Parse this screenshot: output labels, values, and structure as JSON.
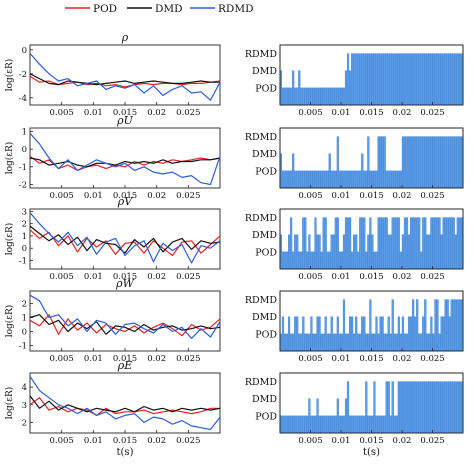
{
  "legend": {
    "entries": [
      {
        "label": "POD",
        "color": "#e8231f"
      },
      {
        "label": "DMD",
        "color": "#111111"
      },
      {
        "label": "RDMD",
        "color": "#2b5fd9"
      }
    ]
  },
  "colors": {
    "pod": "#e8231f",
    "dmd": "#111111",
    "rdmd": "#2b5fd9",
    "bar_fill": "#5a9ee8",
    "bar_edge": "#2e6fc7"
  },
  "chart_data": [
    {
      "type": "line",
      "panel": "left-1",
      "title": "ρ",
      "xlabel": "",
      "ylabel": "log(εR)",
      "xlim": [
        0,
        0.03
      ],
      "ylim": [
        -4.6,
        0.4
      ],
      "xticks": [
        0.005,
        0.01,
        0.015,
        0.02,
        0.025
      ],
      "xtick_labels": [
        "0.005",
        "0.01",
        "0.015",
        "0.02",
        "0.025"
      ],
      "yticks": [
        -4,
        -2,
        0
      ],
      "ytick_labels": [
        "-4",
        "-2",
        "0"
      ],
      "x": [
        0.0,
        0.0015,
        0.003,
        0.0045,
        0.006,
        0.0075,
        0.009,
        0.0105,
        0.012,
        0.0135,
        0.015,
        0.0165,
        0.018,
        0.0195,
        0.021,
        0.0225,
        0.024,
        0.0255,
        0.027,
        0.0285,
        0.03
      ],
      "series": [
        {
          "name": "POD",
          "values": [
            -2.2,
            -2.7,
            -2.6,
            -2.9,
            -2.8,
            -2.7,
            -2.9,
            -2.8,
            -3.0,
            -2.9,
            -3.1,
            -2.9,
            -2.8,
            -2.9,
            -2.8,
            -2.8,
            -2.9,
            -2.8,
            -2.8,
            -2.7,
            -2.6
          ]
        },
        {
          "name": "DMD",
          "values": [
            -2.0,
            -2.4,
            -2.8,
            -2.9,
            -2.6,
            -2.7,
            -2.8,
            -2.9,
            -2.8,
            -2.7,
            -2.6,
            -2.8,
            -2.7,
            -2.6,
            -2.7,
            -2.8,
            -2.8,
            -2.7,
            -2.6,
            -2.7,
            -2.7
          ]
        },
        {
          "name": "RDMD",
          "values": [
            -0.3,
            -1.2,
            -2.0,
            -2.6,
            -2.4,
            -3.0,
            -2.8,
            -2.6,
            -3.3,
            -3.0,
            -3.2,
            -2.9,
            -3.6,
            -3.0,
            -3.8,
            -3.3,
            -3.0,
            -3.6,
            -3.5,
            -4.2,
            -2.7
          ]
        }
      ]
    },
    {
      "type": "line",
      "panel": "left-2",
      "title": "ρU",
      "xlabel": "",
      "ylabel": "log(εR)",
      "xlim": [
        0,
        0.03
      ],
      "ylim": [
        -2.2,
        1.2
      ],
      "xticks": [
        0.005,
        0.01,
        0.015,
        0.02,
        0.025
      ],
      "xtick_labels": [
        "0.005",
        "0.01",
        "0.015",
        "0.02",
        "0.025"
      ],
      "yticks": [
        -2,
        -1,
        0,
        1
      ],
      "ytick_labels": [
        "-2",
        "-1",
        "0",
        "1"
      ],
      "x": [
        0.0,
        0.0015,
        0.003,
        0.0045,
        0.006,
        0.0075,
        0.009,
        0.0105,
        0.012,
        0.0135,
        0.015,
        0.0165,
        0.018,
        0.0195,
        0.021,
        0.0225,
        0.024,
        0.0255,
        0.027,
        0.0285,
        0.03
      ],
      "series": [
        {
          "name": "POD",
          "values": [
            -0.4,
            -0.8,
            -0.6,
            -1.1,
            -0.9,
            -1.2,
            -1.0,
            -0.9,
            -1.1,
            -0.9,
            -1.0,
            -0.7,
            -0.9,
            -0.7,
            -0.8,
            -0.6,
            -0.7,
            -0.6,
            -0.5,
            -0.6,
            -0.5
          ]
        },
        {
          "name": "DMD",
          "values": [
            -0.5,
            -0.6,
            -0.9,
            -0.8,
            -0.7,
            -0.9,
            -1.0,
            -0.8,
            -0.8,
            -0.9,
            -0.7,
            -0.8,
            -0.7,
            -0.8,
            -0.6,
            -0.8,
            -0.7,
            -0.7,
            -0.6,
            -0.6,
            -0.5
          ]
        },
        {
          "name": "RDMD",
          "values": [
            0.9,
            0.3,
            -0.5,
            -1.1,
            -0.6,
            -1.2,
            -0.9,
            -0.6,
            -0.8,
            -1.0,
            -0.8,
            -1.2,
            -1.0,
            -1.3,
            -1.4,
            -1.3,
            -1.6,
            -1.5,
            -1.9,
            -2.0,
            -0.4
          ]
        }
      ]
    },
    {
      "type": "line",
      "panel": "left-3",
      "title": "ρV",
      "xlabel": "",
      "ylabel": "log(εR)",
      "xlim": [
        0,
        0.03
      ],
      "ylim": [
        -1.7,
        3.2
      ],
      "xticks": [
        0.005,
        0.01,
        0.015,
        0.02,
        0.025
      ],
      "xtick_labels": [
        "0.005",
        "0.01",
        "0.015",
        "0.02",
        "0.025"
      ],
      "yticks": [
        -1,
        0,
        1,
        2,
        3
      ],
      "ytick_labels": [
        "-1",
        "0",
        "1",
        "2",
        "3"
      ],
      "x": [
        0.0,
        0.0015,
        0.003,
        0.0045,
        0.006,
        0.0075,
        0.009,
        0.0105,
        0.012,
        0.0135,
        0.015,
        0.0165,
        0.018,
        0.0195,
        0.021,
        0.0225,
        0.024,
        0.0255,
        0.027,
        0.0285,
        0.03
      ],
      "series": [
        {
          "name": "POD",
          "values": [
            1.5,
            0.8,
            1.3,
            0.2,
            1.0,
            -0.3,
            0.8,
            0.1,
            0.6,
            -0.5,
            0.4,
            0.5,
            -0.4,
            0.6,
            0.0,
            -0.6,
            0.5,
            0.6,
            -0.4,
            0.3,
            1.0
          ]
        },
        {
          "name": "DMD",
          "values": [
            1.8,
            1.2,
            0.6,
            1.1,
            0.3,
            0.9,
            -0.2,
            0.7,
            0.4,
            0.3,
            -0.4,
            0.7,
            0.1,
            0.8,
            -0.3,
            0.5,
            0.8,
            -0.1,
            0.6,
            0.4,
            0.5
          ]
        },
        {
          "name": "RDMD",
          "values": [
            2.9,
            2.0,
            1.2,
            0.5,
            1.3,
            0.2,
            0.9,
            -0.5,
            0.5,
            0.8,
            -0.6,
            0.2,
            0.6,
            -1.1,
            0.4,
            -0.2,
            0.3,
            -1.2,
            0.2,
            0.0,
            0.6
          ]
        }
      ]
    },
    {
      "type": "line",
      "panel": "left-4",
      "title": "ρW",
      "xlabel": "",
      "ylabel": "log(εR)",
      "xlim": [
        0,
        0.03
      ],
      "ylim": [
        -1.4,
        2.9
      ],
      "xticks": [
        0.005,
        0.01,
        0.015,
        0.02,
        0.025
      ],
      "xtick_labels": [
        "0.005",
        "0.01",
        "0.015",
        "0.02",
        "0.025"
      ],
      "yticks": [
        -1,
        0,
        1,
        2
      ],
      "ytick_labels": [
        "-1",
        "0",
        "1",
        "2"
      ],
      "x": [
        0.0,
        0.0015,
        0.003,
        0.0045,
        0.006,
        0.0075,
        0.009,
        0.0105,
        0.012,
        0.0135,
        0.015,
        0.0165,
        0.018,
        0.0195,
        0.021,
        0.0225,
        0.024,
        0.0255,
        0.027,
        0.0285,
        0.03
      ],
      "series": [
        {
          "name": "POD",
          "values": [
            0.8,
            0.4,
            1.2,
            -0.2,
            0.9,
            0.1,
            0.6,
            -0.1,
            0.5,
            0.2,
            0.0,
            0.4,
            -0.1,
            0.3,
            0.6,
            0.2,
            -0.3,
            0.5,
            0.1,
            0.3,
            0.9
          ]
        },
        {
          "name": "DMD",
          "values": [
            1.0,
            1.2,
            0.5,
            0.8,
            0.0,
            0.6,
            0.2,
            0.7,
            -0.2,
            0.4,
            0.3,
            0.0,
            0.5,
            0.1,
            0.3,
            0.4,
            0.1,
            0.2,
            0.4,
            0.2,
            0.3
          ]
        },
        {
          "name": "RDMD",
          "values": [
            2.6,
            2.2,
            1.0,
            1.2,
            0.4,
            0.9,
            0.0,
            0.8,
            0.6,
            -0.2,
            0.5,
            0.6,
            0.2,
            -0.1,
            0.5,
            0.0,
            0.3,
            -0.5,
            0.2,
            -0.4,
            0.7
          ]
        }
      ]
    },
    {
      "type": "line",
      "panel": "left-5",
      "title": "ρE",
      "xlabel": "t(s)",
      "ylabel": "log(εR)",
      "xlim": [
        0,
        0.03
      ],
      "ylim": [
        1.4,
        4.8
      ],
      "xticks": [
        0.005,
        0.01,
        0.015,
        0.02,
        0.025
      ],
      "xtick_labels": [
        "0.005",
        "0.01",
        "0.015",
        "0.02",
        "0.025"
      ],
      "yticks": [
        2,
        3,
        4
      ],
      "ytick_labels": [
        "2",
        "3",
        "4"
      ],
      "x": [
        0.0,
        0.0015,
        0.003,
        0.0045,
        0.006,
        0.0075,
        0.009,
        0.0105,
        0.012,
        0.0135,
        0.015,
        0.0165,
        0.018,
        0.0195,
        0.021,
        0.0225,
        0.024,
        0.0255,
        0.027,
        0.0285,
        0.03
      ],
      "series": [
        {
          "name": "POD",
          "values": [
            3.0,
            3.4,
            2.7,
            2.9,
            2.6,
            2.8,
            2.7,
            2.4,
            2.8,
            2.5,
            2.6,
            2.6,
            2.7,
            2.5,
            2.6,
            2.7,
            2.6,
            2.5,
            2.6,
            2.8,
            2.8
          ]
        },
        {
          "name": "DMD",
          "values": [
            3.5,
            2.8,
            3.2,
            2.7,
            3.0,
            2.8,
            2.6,
            2.8,
            2.7,
            2.6,
            2.8,
            2.6,
            2.9,
            2.7,
            2.8,
            2.6,
            2.8,
            2.7,
            2.8,
            2.7,
            2.8
          ]
        },
        {
          "name": "RDMD",
          "values": [
            4.6,
            3.8,
            3.4,
            3.0,
            2.8,
            2.5,
            2.8,
            2.4,
            2.6,
            2.2,
            2.4,
            2.5,
            2.0,
            2.3,
            2.2,
            1.9,
            2.1,
            1.8,
            1.7,
            1.6,
            2.3
          ]
        }
      ]
    },
    {
      "type": "bar",
      "panel": "right-1",
      "title": "",
      "xlabel": "",
      "ylabel": "",
      "xlim": [
        0,
        0.03
      ],
      "categories": [
        "POD",
        "DMD",
        "RDMD"
      ],
      "xticks": [
        0.005,
        0.01,
        0.015,
        0.02,
        0.025
      ],
      "xtick_labels": [
        "0.005",
        "0.01",
        "0.015",
        "0.02",
        "0.025"
      ],
      "levels": [
        2,
        1,
        1,
        1,
        1,
        1,
        2,
        1,
        1,
        2,
        1,
        1,
        1,
        1,
        1,
        1,
        1,
        1,
        1,
        1,
        1,
        1,
        1,
        1,
        1,
        1,
        1,
        1,
        1,
        1,
        1,
        1,
        2,
        3,
        2,
        3,
        3,
        3,
        3,
        3,
        3,
        3,
        3,
        3,
        3,
        3,
        3,
        3,
        3,
        3,
        3,
        3,
        3,
        3,
        3,
        3,
        3,
        3,
        3,
        3,
        3,
        3,
        3,
        3,
        3,
        3,
        3,
        3,
        3,
        3,
        3,
        3,
        3,
        3,
        3,
        3,
        3,
        3,
        3,
        3,
        3,
        3,
        3,
        3,
        3,
        3,
        3,
        3,
        3,
        3
      ]
    },
    {
      "type": "bar",
      "panel": "right-2",
      "title": "",
      "xlabel": "",
      "ylabel": "",
      "xlim": [
        0,
        0.03
      ],
      "categories": [
        "POD",
        "DMD",
        "RDMD"
      ],
      "xticks": [
        0.005,
        0.01,
        0.015,
        0.02,
        0.025
      ],
      "xtick_labels": [
        "0.005",
        "0.01",
        "0.015",
        "0.02",
        "0.025"
      ],
      "levels": [
        2,
        1,
        1,
        1,
        1,
        1,
        2,
        1,
        1,
        1,
        1,
        1,
        1,
        1,
        1,
        1,
        1,
        1,
        1,
        1,
        1,
        1,
        1,
        1,
        2,
        1,
        1,
        1,
        3,
        1,
        1,
        1,
        1,
        1,
        1,
        1,
        1,
        1,
        1,
        1,
        2,
        1,
        1,
        3,
        1,
        1,
        1,
        1,
        3,
        3,
        3,
        3,
        1,
        1,
        1,
        1,
        1,
        1,
        1,
        1,
        3,
        3,
        3,
        3,
        3,
        3,
        3,
        3,
        3,
        3,
        3,
        3,
        3,
        3,
        3,
        3,
        3,
        3,
        3,
        3,
        3,
        3,
        3,
        3,
        3,
        3,
        3,
        3,
        3,
        3
      ]
    },
    {
      "type": "bar",
      "panel": "right-3",
      "title": "",
      "xlabel": "",
      "ylabel": "",
      "xlim": [
        0,
        0.03
      ],
      "categories": [
        "POD",
        "DMD",
        "RDMD"
      ],
      "xticks": [
        0.005,
        0.01,
        0.015,
        0.02,
        0.025
      ],
      "xtick_labels": [
        "0.005",
        "0.01",
        "0.015",
        "0.02",
        "0.025"
      ],
      "levels": [
        2,
        1,
        1,
        1,
        2,
        3,
        1,
        2,
        2,
        1,
        1,
        3,
        3,
        1,
        2,
        1,
        1,
        3,
        2,
        2,
        1,
        3,
        3,
        1,
        1,
        2,
        2,
        3,
        3,
        1,
        1,
        2,
        3,
        3,
        3,
        1,
        2,
        2,
        1,
        3,
        3,
        3,
        1,
        2,
        3,
        2,
        1,
        1,
        3,
        3,
        3,
        3,
        3,
        2,
        2,
        3,
        3,
        3,
        3,
        1,
        2,
        3,
        3,
        2,
        3,
        3,
        3,
        3,
        3,
        1,
        3,
        3,
        2,
        2,
        3,
        3,
        3,
        3,
        3,
        2,
        3,
        3,
        3,
        3,
        3,
        3,
        2,
        3,
        3,
        3
      ]
    },
    {
      "type": "bar",
      "panel": "right-4",
      "title": "",
      "xlabel": "",
      "ylabel": "",
      "xlim": [
        0,
        0.03
      ],
      "categories": [
        "POD",
        "DMD",
        "RDMD"
      ],
      "xticks": [
        0.005,
        0.01,
        0.015,
        0.02,
        0.025
      ],
      "xtick_labels": [
        "0.005",
        "0.01",
        "0.015",
        "0.02",
        "0.025"
      ],
      "levels": [
        1,
        2,
        1,
        1,
        2,
        1,
        1,
        2,
        2,
        1,
        1,
        2,
        1,
        1,
        1,
        2,
        1,
        1,
        2,
        2,
        1,
        1,
        2,
        1,
        1,
        2,
        1,
        1,
        2,
        1,
        1,
        3,
        1,
        1,
        2,
        2,
        1,
        2,
        1,
        1,
        2,
        2,
        1,
        1,
        3,
        1,
        1,
        2,
        1,
        2,
        2,
        1,
        1,
        2,
        1,
        3,
        1,
        1,
        2,
        1,
        2,
        1,
        1,
        2,
        2,
        3,
        2,
        3,
        1,
        1,
        2,
        3,
        1,
        1,
        2,
        1,
        3,
        3,
        1,
        2,
        2,
        3,
        3,
        2,
        3,
        3,
        3,
        3,
        3,
        3
      ]
    },
    {
      "type": "bar",
      "panel": "right-5",
      "title": "",
      "xlabel": "t(s)",
      "ylabel": "",
      "xlim": [
        0,
        0.03
      ],
      "categories": [
        "POD",
        "DMD",
        "RDMD"
      ],
      "xticks": [
        0.005,
        0.01,
        0.015,
        0.02,
        0.025
      ],
      "xtick_labels": [
        "0.005",
        "0.01",
        "0.015",
        "0.02",
        "0.025"
      ],
      "levels": [
        1,
        1,
        1,
        1,
        1,
        1,
        1,
        1,
        1,
        1,
        1,
        1,
        1,
        1,
        2,
        1,
        1,
        1,
        2,
        1,
        1,
        1,
        1,
        1,
        1,
        1,
        1,
        1,
        2,
        1,
        1,
        1,
        2,
        3,
        1,
        1,
        1,
        1,
        1,
        1,
        1,
        1,
        3,
        1,
        1,
        1,
        3,
        1,
        1,
        1,
        1,
        1,
        3,
        3,
        1,
        3,
        1,
        1,
        3,
        3,
        3,
        3,
        3,
        3,
        3,
        3,
        3,
        3,
        3,
        3,
        3,
        3,
        3,
        3,
        3,
        3,
        3,
        3,
        3,
        3,
        3,
        3,
        3,
        3,
        3,
        3,
        3,
        3,
        3,
        3
      ]
    }
  ]
}
